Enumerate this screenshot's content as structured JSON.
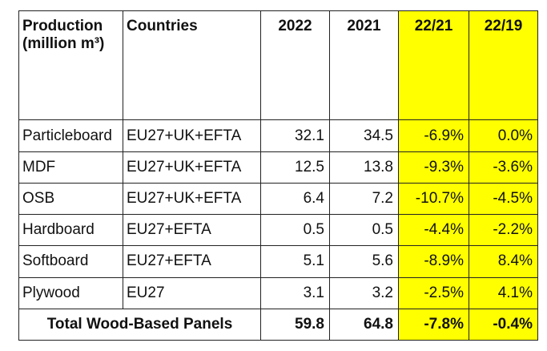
{
  "table": {
    "headers": {
      "production": "Production",
      "unit": "(million m³)",
      "countries": "Countries",
      "y2022": "2022",
      "y2021": "2021",
      "chg_22_21": "22/21",
      "chg_22_19": "22/19"
    },
    "rows": [
      {
        "product": "Particleboard",
        "countries": "EU27+UK+EFTA",
        "y2022": "32.1",
        "y2021": "34.5",
        "chg_22_21": "-6.9%",
        "chg_22_19": "0.0%"
      },
      {
        "product": "MDF",
        "countries": "EU27+UK+EFTA",
        "y2022": "12.5",
        "y2021": "13.8",
        "chg_22_21": "-9.3%",
        "chg_22_19": "-3.6%"
      },
      {
        "product": "OSB",
        "countries": "EU27+UK+EFTA",
        "y2022": "6.4",
        "y2021": "7.2",
        "chg_22_21": "-10.7%",
        "chg_22_19": "-4.5%"
      },
      {
        "product": "Hardboard",
        "countries": "EU27+EFTA",
        "y2022": "0.5",
        "y2021": "0.5",
        "chg_22_21": "-4.4%",
        "chg_22_19": "-2.2%"
      },
      {
        "product": "Softboard",
        "countries": "EU27+EFTA",
        "y2022": "5.1",
        "y2021": "5.6",
        "chg_22_21": "-8.9%",
        "chg_22_19": "8.4%"
      },
      {
        "product": "Plywood",
        "countries": "EU27",
        "y2022": "3.1",
        "y2021": "3.2",
        "chg_22_21": "-2.5%",
        "chg_22_19": "4.1%"
      }
    ],
    "total": {
      "label": "Total Wood-Based Panels",
      "y2022": "59.8",
      "y2021": "64.8",
      "chg_22_21": "-7.8%",
      "chg_22_19": "-0.4%"
    },
    "highlight_color": "#ffff00"
  }
}
